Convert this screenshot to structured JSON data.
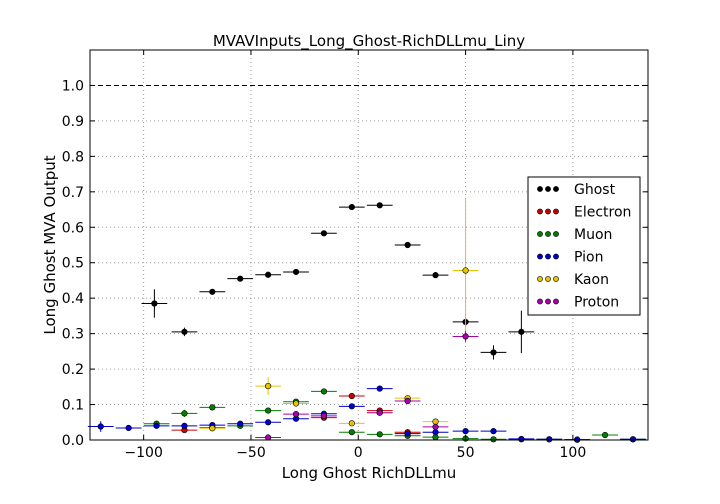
{
  "chart_data": {
    "type": "scatter",
    "title": "MVAVInputs_Long_Ghost-RichDLLmu_Liny",
    "xlabel": "Long Ghost RichDLLmu",
    "ylabel": "Long Ghost MVA Output",
    "xlim": [
      -125,
      135
    ],
    "ylim": [
      0,
      1.1
    ],
    "xticks": [
      -100,
      -50,
      0,
      50,
      100
    ],
    "yticks": [
      0.0,
      0.1,
      0.2,
      0.3,
      0.4,
      0.5,
      0.6,
      0.7,
      0.8,
      0.9,
      1.0
    ],
    "ytick_labels": [
      "0.0",
      "0.1",
      "0.2",
      "0.3",
      "0.4",
      "0.5",
      "0.6",
      "0.7",
      "0.8",
      "0.9",
      "1.0"
    ],
    "xtick_labels": [
      "−100",
      "−50",
      "0",
      "50",
      "100"
    ],
    "grid": true,
    "reference_line": {
      "y": 1.0,
      "style": "dashed"
    },
    "legend_position": "right",
    "x_half_width": 6,
    "series": [
      {
        "name": "Ghost",
        "color": "#000000",
        "points": [
          {
            "x": -95,
            "y": 0.385,
            "ey": 0.04
          },
          {
            "x": -81,
            "y": 0.305,
            "ey": 0.012
          },
          {
            "x": -68,
            "y": 0.418,
            "ey": 0.006
          },
          {
            "x": -55,
            "y": 0.455,
            "ey": 0.006
          },
          {
            "x": -42,
            "y": 0.466,
            "ey": 0.005
          },
          {
            "x": -29,
            "y": 0.474,
            "ey": 0.004
          },
          {
            "x": -16,
            "y": 0.583,
            "ey": 0.004
          },
          {
            "x": -3,
            "y": 0.657,
            "ey": 0.004
          },
          {
            "x": 10,
            "y": 0.662,
            "ey": 0.004
          },
          {
            "x": 23,
            "y": 0.55,
            "ey": 0.006
          },
          {
            "x": 36,
            "y": 0.465,
            "ey": 0.008
          },
          {
            "x": 50,
            "y": 0.333,
            "ey": 0.012
          },
          {
            "x": 63,
            "y": 0.247,
            "ey": 0.02
          },
          {
            "x": 76,
            "y": 0.305,
            "ey": 0.06
          }
        ]
      },
      {
        "name": "Electron",
        "color": "#cc0000",
        "points": [
          {
            "x": -81,
            "y": 0.028,
            "ey": 0.004
          },
          {
            "x": -68,
            "y": 0.035,
            "ey": 0.003
          },
          {
            "x": -16,
            "y": 0.063,
            "ey": 0.003
          },
          {
            "x": -3,
            "y": 0.124,
            "ey": 0.004
          },
          {
            "x": 10,
            "y": 0.083,
            "ey": 0.005
          },
          {
            "x": 23,
            "y": 0.022,
            "ey": 0.003
          }
        ]
      },
      {
        "name": "Muon",
        "color": "#008000",
        "points": [
          {
            "x": -94,
            "y": 0.046,
            "ey": 0.006
          },
          {
            "x": -81,
            "y": 0.075,
            "ey": 0.01
          },
          {
            "x": -68,
            "y": 0.092,
            "ey": 0.008
          },
          {
            "x": -55,
            "y": 0.04,
            "ey": 0.003
          },
          {
            "x": -42,
            "y": 0.083,
            "ey": 0.003
          },
          {
            "x": -29,
            "y": 0.108,
            "ey": 0.003
          },
          {
            "x": -16,
            "y": 0.137,
            "ey": 0.003
          },
          {
            "x": -3,
            "y": 0.022,
            "ey": 0.002
          },
          {
            "x": 10,
            "y": 0.016,
            "ey": 0.002
          },
          {
            "x": 23,
            "y": 0.012,
            "ey": 0.002
          },
          {
            "x": 36,
            "y": 0.008,
            "ey": 0.002
          },
          {
            "x": 50,
            "y": 0.004,
            "ey": 0.002
          },
          {
            "x": 63,
            "y": 0.002,
            "ey": 0.001
          },
          {
            "x": 76,
            "y": 0.002,
            "ey": 0.001
          },
          {
            "x": 89,
            "y": 0.002,
            "ey": 0.001
          },
          {
            "x": 102,
            "y": 0.001,
            "ey": 0.001
          },
          {
            "x": 115,
            "y": 0.014,
            "ey": 0.003
          },
          {
            "x": 128,
            "y": 0.002,
            "ey": 0.001
          }
        ]
      },
      {
        "name": "Pion",
        "color": "#0000cc",
        "points": [
          {
            "x": -120,
            "y": 0.038,
            "ey": 0.015
          },
          {
            "x": -107,
            "y": 0.034,
            "ey": 0.003
          },
          {
            "x": -94,
            "y": 0.04,
            "ey": 0.003
          },
          {
            "x": -81,
            "y": 0.04,
            "ey": 0.002
          },
          {
            "x": -68,
            "y": 0.042,
            "ey": 0.002
          },
          {
            "x": -55,
            "y": 0.046,
            "ey": 0.002
          },
          {
            "x": -42,
            "y": 0.05,
            "ey": 0.002
          },
          {
            "x": -29,
            "y": 0.06,
            "ey": 0.002
          },
          {
            "x": -16,
            "y": 0.074,
            "ey": 0.002
          },
          {
            "x": -3,
            "y": 0.095,
            "ey": 0.002
          },
          {
            "x": 10,
            "y": 0.145,
            "ey": 0.003
          },
          {
            "x": 23,
            "y": 0.018,
            "ey": 0.002
          },
          {
            "x": 36,
            "y": 0.022,
            "ey": 0.002
          },
          {
            "x": 50,
            "y": 0.025,
            "ey": 0.002
          },
          {
            "x": 63,
            "y": 0.025,
            "ey": 0.002
          },
          {
            "x": 76,
            "y": 0.003,
            "ey": 0.001
          },
          {
            "x": 89,
            "y": 0.002,
            "ey": 0.001
          },
          {
            "x": 102,
            "y": 0.001,
            "ey": 0.001
          },
          {
            "x": 128,
            "y": 0.002,
            "ey": 0.001
          }
        ]
      },
      {
        "name": "Kaon",
        "color": "#e8c400",
        "points": [
          {
            "x": -68,
            "y": 0.033,
            "ey": 0.003
          },
          {
            "x": -42,
            "y": 0.152,
            "ey": 0.025
          },
          {
            "x": -29,
            "y": 0.103,
            "ey": 0.006
          },
          {
            "x": -3,
            "y": 0.047,
            "ey": 0.004
          },
          {
            "x": 10,
            "y": 0.077,
            "ey": 0.005
          },
          {
            "x": 23,
            "y": 0.118,
            "ey": 0.006
          },
          {
            "x": 36,
            "y": 0.052,
            "ey": 0.005
          },
          {
            "x": 50,
            "y": 0.478,
            "ey": 0.205
          }
        ]
      },
      {
        "name": "Proton",
        "color": "#aa00aa",
        "points": [
          {
            "x": -42,
            "y": 0.007,
            "ey": 0.002
          },
          {
            "x": -29,
            "y": 0.073,
            "ey": 0.003
          },
          {
            "x": -16,
            "y": 0.068,
            "ey": 0.003
          },
          {
            "x": 10,
            "y": 0.077,
            "ey": 0.004
          },
          {
            "x": 23,
            "y": 0.11,
            "ey": 0.005
          },
          {
            "x": 36,
            "y": 0.037,
            "ey": 0.004
          },
          {
            "x": 50,
            "y": 0.292,
            "ey": 0.015
          }
        ]
      }
    ]
  }
}
